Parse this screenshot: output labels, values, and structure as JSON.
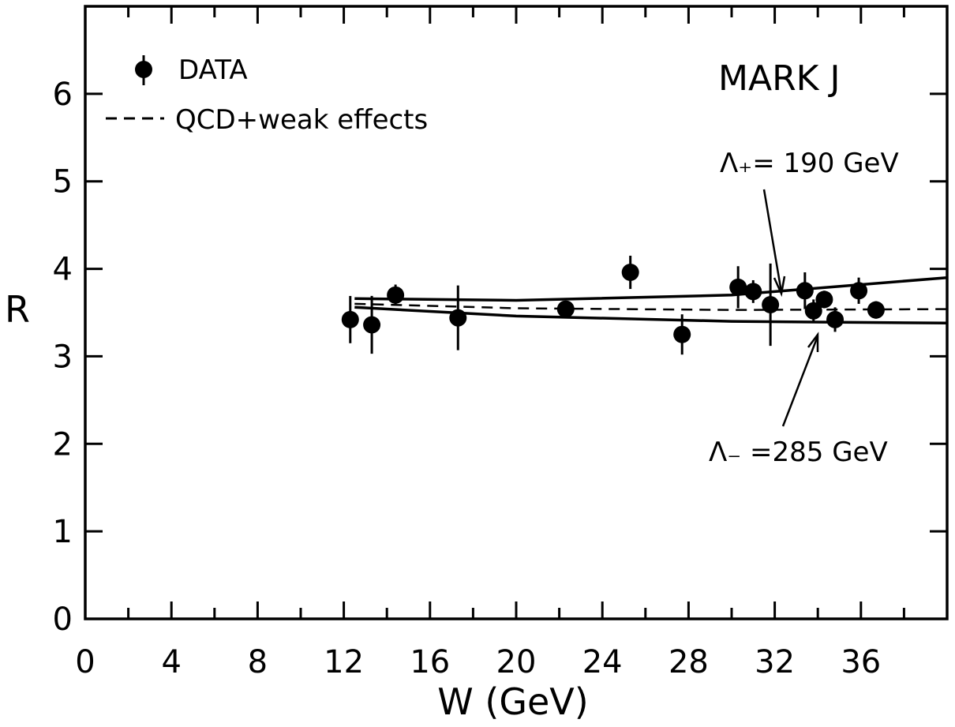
{
  "chart_data": {
    "type": "scatter",
    "title": "MARK J",
    "xlabel": "W (GeV)",
    "ylabel": "R",
    "xlim": [
      0,
      40
    ],
    "ylim": [
      0,
      7
    ],
    "x_ticks": [
      "0",
      "4",
      "8",
      "12",
      "16",
      "20",
      "24",
      "28",
      "32",
      "36"
    ],
    "y_ticks": [
      "0",
      "1",
      "2",
      "3",
      "4",
      "5",
      "6"
    ],
    "legend": {
      "position": "top-left",
      "entries": [
        {
          "label": "DATA",
          "style": "point-with-error-bar"
        },
        {
          "label": "QCD+weak effects",
          "style": "dashed-line"
        }
      ]
    },
    "annotations": [
      {
        "text": "Λ₊= 190 GeV",
        "points_to": "upper solid curve"
      },
      {
        "text": "Λ₋ =285 GeV",
        "points_to": "lower solid curve"
      }
    ],
    "series": [
      {
        "name": "DATA",
        "style": "points",
        "points": [
          {
            "x": 12.3,
            "y": 3.42,
            "err": 0.27
          },
          {
            "x": 13.3,
            "y": 3.36,
            "err": 0.33
          },
          {
            "x": 14.4,
            "y": 3.7,
            "err": 0.12
          },
          {
            "x": 17.3,
            "y": 3.44,
            "err": 0.37
          },
          {
            "x": 22.3,
            "y": 3.54,
            "err": 0.06
          },
          {
            "x": 25.3,
            "y": 3.96,
            "err": 0.19
          },
          {
            "x": 27.7,
            "y": 3.25,
            "err": 0.23
          },
          {
            "x": 30.3,
            "y": 3.79,
            "err": 0.24
          },
          {
            "x": 31.0,
            "y": 3.74,
            "err": 0.13
          },
          {
            "x": 31.8,
            "y": 3.59,
            "err": 0.47
          },
          {
            "x": 33.4,
            "y": 3.75,
            "err": 0.21
          },
          {
            "x": 33.8,
            "y": 3.52,
            "err": 0.13
          },
          {
            "x": 34.3,
            "y": 3.65,
            "err": 0.1
          },
          {
            "x": 34.8,
            "y": 3.42,
            "err": 0.14
          },
          {
            "x": 35.9,
            "y": 3.75,
            "err": 0.15
          },
          {
            "x": 36.7,
            "y": 3.53,
            "err": 0.1
          }
        ]
      },
      {
        "name": "QCD+weak effects",
        "style": "dashed",
        "x": [
          12.5,
          20,
          30,
          40
        ],
        "y": [
          3.6,
          3.55,
          3.53,
          3.54
        ]
      },
      {
        "style": "solid",
        "x": [
          12.5,
          20,
          30,
          40
        ],
        "y": [
          3.66,
          3.64,
          3.7,
          3.9
        ]
      },
      {
        "style": "solid",
        "x": [
          12.5,
          20,
          30,
          40
        ],
        "y": [
          3.56,
          3.46,
          3.4,
          3.38
        ]
      }
    ]
  }
}
